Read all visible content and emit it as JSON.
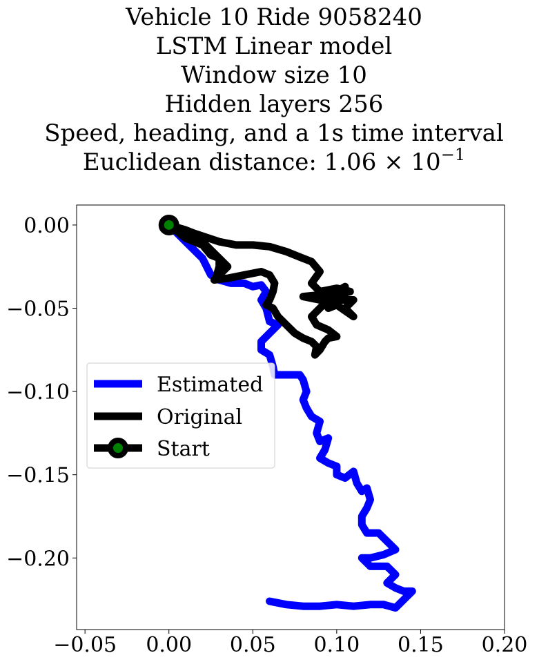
{
  "chart_data": {
    "type": "line",
    "title_lines": [
      "Vehicle 10 Ride 9058240",
      "LSTM Linear model",
      "Window size 10",
      "Hidden layers 256",
      "Speed, heading, and a 1s time interval"
    ],
    "distance_prefix": "Euclidean distance: 1.06 × 10",
    "distance_exponent": "−1",
    "xlabel": "",
    "ylabel": "",
    "xlim": [
      -0.055,
      0.2
    ],
    "ylim": [
      -0.243,
      0.012
    ],
    "x_ticks": [
      -0.05,
      0.0,
      0.05,
      0.1,
      0.15,
      0.2
    ],
    "x_tick_labels": [
      "−0.05",
      "0.00",
      "0.05",
      "0.10",
      "0.15",
      "0.20"
    ],
    "y_ticks": [
      0.0,
      -0.05,
      -0.1,
      -0.15,
      -0.2
    ],
    "y_tick_labels": [
      "0.00",
      "−0.05",
      "−0.10",
      "−0.15",
      "−0.20"
    ],
    "grid": false,
    "legend_position": "center-left",
    "series": [
      {
        "name": "Estimated",
        "color": "#0000ff",
        "points": [
          [
            0.0,
            0.0
          ],
          [
            0.01,
            -0.01
          ],
          [
            0.02,
            -0.02
          ],
          [
            0.025,
            -0.03
          ],
          [
            0.03,
            -0.033
          ],
          [
            0.037,
            -0.035
          ],
          [
            0.045,
            -0.035
          ],
          [
            0.05,
            -0.037
          ],
          [
            0.055,
            -0.036
          ],
          [
            0.058,
            -0.04
          ],
          [
            0.055,
            -0.045
          ],
          [
            0.058,
            -0.05
          ],
          [
            0.06,
            -0.058
          ],
          [
            0.065,
            -0.06
          ],
          [
            0.06,
            -0.065
          ],
          [
            0.055,
            -0.07
          ],
          [
            0.055,
            -0.075
          ],
          [
            0.06,
            -0.078
          ],
          [
            0.062,
            -0.085
          ],
          [
            0.063,
            -0.09
          ],
          [
            0.07,
            -0.09
          ],
          [
            0.078,
            -0.09
          ],
          [
            0.08,
            -0.093
          ],
          [
            0.082,
            -0.1
          ],
          [
            0.08,
            -0.105
          ],
          [
            0.082,
            -0.11
          ],
          [
            0.085,
            -0.115
          ],
          [
            0.09,
            -0.118
          ],
          [
            0.088,
            -0.125
          ],
          [
            0.09,
            -0.13
          ],
          [
            0.095,
            -0.128
          ],
          [
            0.093,
            -0.135
          ],
          [
            0.09,
            -0.14
          ],
          [
            0.095,
            -0.143
          ],
          [
            0.1,
            -0.145
          ],
          [
            0.1,
            -0.15
          ],
          [
            0.105,
            -0.152
          ],
          [
            0.11,
            -0.148
          ],
          [
            0.112,
            -0.155
          ],
          [
            0.115,
            -0.16
          ],
          [
            0.118,
            -0.158
          ],
          [
            0.12,
            -0.165
          ],
          [
            0.118,
            -0.17
          ],
          [
            0.115,
            -0.175
          ],
          [
            0.115,
            -0.18
          ],
          [
            0.118,
            -0.185
          ],
          [
            0.125,
            -0.185
          ],
          [
            0.13,
            -0.19
          ],
          [
            0.135,
            -0.195
          ],
          [
            0.128,
            -0.198
          ],
          [
            0.12,
            -0.2
          ],
          [
            0.115,
            -0.2
          ],
          [
            0.12,
            -0.205
          ],
          [
            0.13,
            -0.205
          ],
          [
            0.135,
            -0.21
          ],
          [
            0.13,
            -0.215
          ],
          [
            0.135,
            -0.218
          ],
          [
            0.14,
            -0.22
          ],
          [
            0.145,
            -0.22
          ],
          [
            0.14,
            -0.225
          ],
          [
            0.135,
            -0.23
          ],
          [
            0.128,
            -0.228
          ],
          [
            0.12,
            -0.228
          ],
          [
            0.11,
            -0.229
          ],
          [
            0.1,
            -0.228
          ],
          [
            0.09,
            -0.229
          ],
          [
            0.08,
            -0.229
          ],
          [
            0.07,
            -0.228
          ],
          [
            0.06,
            -0.226
          ]
        ]
      },
      {
        "name": "Original",
        "color": "#000000",
        "points": [
          [
            0.0,
            0.0
          ],
          [
            0.01,
            -0.005
          ],
          [
            0.02,
            -0.01
          ],
          [
            0.025,
            -0.015
          ],
          [
            0.03,
            -0.02
          ],
          [
            0.035,
            -0.025
          ],
          [
            0.03,
            -0.03
          ],
          [
            0.027,
            -0.033
          ],
          [
            0.035,
            -0.032
          ],
          [
            0.045,
            -0.03
          ],
          [
            0.055,
            -0.028
          ],
          [
            0.06,
            -0.03
          ],
          [
            0.063,
            -0.035
          ],
          [
            0.062,
            -0.04
          ],
          [
            0.06,
            -0.045
          ],
          [
            0.058,
            -0.048
          ],
          [
            0.062,
            -0.05
          ],
          [
            0.065,
            -0.055
          ],
          [
            0.07,
            -0.06
          ],
          [
            0.072,
            -0.062
          ],
          [
            0.075,
            -0.065
          ],
          [
            0.08,
            -0.068
          ],
          [
            0.085,
            -0.07
          ],
          [
            0.088,
            -0.073
          ],
          [
            0.087,
            -0.078
          ],
          [
            0.09,
            -0.075
          ],
          [
            0.093,
            -0.07
          ],
          [
            0.095,
            -0.068
          ],
          [
            0.1,
            -0.067
          ],
          [
            0.095,
            -0.063
          ],
          [
            0.088,
            -0.06
          ],
          [
            0.085,
            -0.055
          ],
          [
            0.09,
            -0.05
          ],
          [
            0.095,
            -0.045
          ],
          [
            0.1,
            -0.04
          ],
          [
            0.105,
            -0.037
          ],
          [
            0.1,
            -0.04
          ],
          [
            0.09,
            -0.042
          ],
          [
            0.08,
            -0.043
          ],
          [
            0.09,
            -0.045
          ],
          [
            0.1,
            -0.045
          ],
          [
            0.11,
            -0.045
          ],
          [
            0.105,
            -0.05
          ],
          [
            0.11,
            -0.055
          ],
          [
            0.1,
            -0.048
          ],
          [
            0.095,
            -0.05
          ],
          [
            0.1,
            -0.042
          ],
          [
            0.108,
            -0.04
          ],
          [
            0.1,
            -0.038
          ],
          [
            0.09,
            -0.04
          ],
          [
            0.085,
            -0.035
          ],
          [
            0.09,
            -0.028
          ],
          [
            0.085,
            -0.022
          ],
          [
            0.08,
            -0.02
          ],
          [
            0.07,
            -0.016
          ],
          [
            0.06,
            -0.013
          ],
          [
            0.05,
            -0.012
          ],
          [
            0.04,
            -0.012
          ],
          [
            0.03,
            -0.01
          ],
          [
            0.015,
            -0.005
          ],
          [
            0.01,
            -0.003
          ],
          [
            0.0,
            0.0
          ],
          [
            0.01,
            -0.008
          ],
          [
            0.02,
            -0.012
          ],
          [
            0.025,
            -0.018
          ],
          [
            0.03,
            -0.02
          ],
          [
            0.03,
            -0.025
          ],
          [
            0.028,
            -0.032
          ]
        ]
      },
      {
        "name": "Start",
        "color": "#000000",
        "marker_color": "#008000",
        "points": [
          [
            0.0,
            0.0
          ]
        ]
      }
    ]
  }
}
